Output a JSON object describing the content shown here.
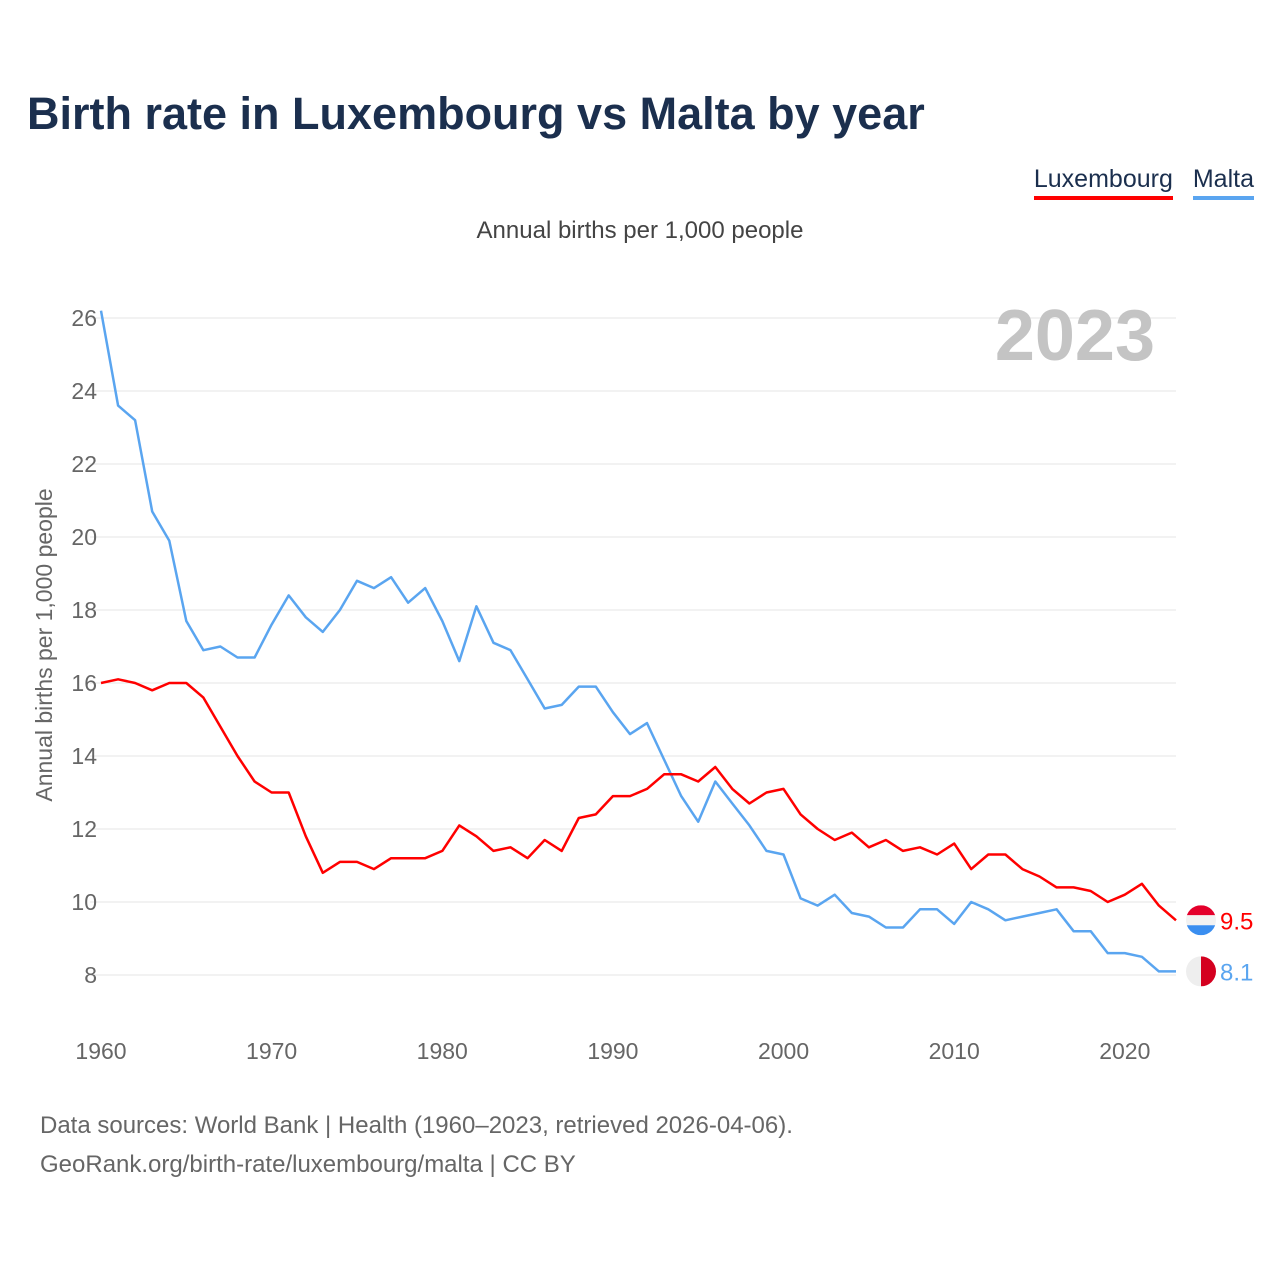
{
  "chart_data": {
    "type": "line",
    "title": "Birth rate in Luxembourg vs Malta by year",
    "subtitle": "Annual births per 1,000 people",
    "ylabel": "Annual births per 1,000 people",
    "xlabel": "",
    "year_label": "2023",
    "xlim": [
      1960,
      2023
    ],
    "ylim": [
      8,
      26
    ],
    "yticks": [
      8,
      10,
      12,
      14,
      16,
      18,
      20,
      22,
      24,
      26
    ],
    "xticks": [
      1960,
      1970,
      1980,
      1990,
      2000,
      2010,
      2020
    ],
    "grid": true,
    "legend_position": "top-right",
    "x": [
      1960,
      1961,
      1962,
      1963,
      1964,
      1965,
      1966,
      1967,
      1968,
      1969,
      1970,
      1971,
      1972,
      1973,
      1974,
      1975,
      1976,
      1977,
      1978,
      1979,
      1980,
      1981,
      1982,
      1983,
      1984,
      1985,
      1986,
      1987,
      1988,
      1989,
      1990,
      1991,
      1992,
      1993,
      1994,
      1995,
      1996,
      1997,
      1998,
      1999,
      2000,
      2001,
      2002,
      2003,
      2004,
      2005,
      2006,
      2007,
      2008,
      2009,
      2010,
      2011,
      2012,
      2013,
      2014,
      2015,
      2016,
      2017,
      2018,
      2019,
      2020,
      2021,
      2022,
      2023
    ],
    "series": [
      {
        "name": "Luxembourg",
        "color": "#ff0000",
        "end_label": "9.5",
        "values": [
          16.0,
          16.1,
          16.0,
          15.8,
          16.0,
          16.0,
          15.6,
          14.8,
          14.0,
          13.3,
          13.0,
          13.0,
          11.8,
          10.8,
          11.1,
          11.1,
          10.9,
          11.2,
          11.2,
          11.2,
          11.4,
          12.1,
          11.8,
          11.4,
          11.5,
          11.2,
          11.7,
          11.4,
          12.3,
          12.4,
          12.9,
          12.9,
          13.1,
          13.5,
          13.5,
          13.3,
          13.7,
          13.1,
          12.7,
          13.0,
          13.1,
          12.4,
          12.0,
          11.7,
          11.9,
          11.5,
          11.7,
          11.4,
          11.5,
          11.3,
          11.6,
          10.9,
          11.3,
          11.3,
          10.9,
          10.7,
          10.4,
          10.4,
          10.3,
          10.0,
          10.2,
          10.5,
          9.9,
          9.5
        ]
      },
      {
        "name": "Malta",
        "color": "#5aa5f0",
        "end_label": "8.1",
        "values": [
          26.2,
          23.6,
          23.2,
          20.7,
          19.9,
          17.7,
          16.9,
          17.0,
          16.7,
          16.7,
          17.6,
          18.4,
          17.8,
          17.4,
          18.0,
          18.8,
          18.6,
          18.9,
          18.2,
          18.6,
          17.7,
          16.6,
          18.1,
          17.1,
          16.9,
          16.1,
          15.3,
          15.4,
          15.9,
          15.9,
          15.2,
          14.6,
          14.9,
          13.9,
          12.9,
          12.2,
          13.3,
          12.7,
          12.1,
          11.4,
          11.3,
          10.1,
          9.9,
          10.2,
          9.7,
          9.6,
          9.3,
          9.3,
          9.8,
          9.8,
          9.4,
          10.0,
          9.8,
          9.5,
          9.6,
          9.7,
          9.8,
          9.2,
          9.2,
          8.6,
          8.6,
          8.5,
          8.1,
          8.1
        ]
      }
    ]
  },
  "footer": {
    "line1": "Data sources: World Bank | Health (1960–2023, retrieved 2026-04-06).",
    "line2": "GeoRank.org/birth-rate/luxembourg/malta | CC BY"
  }
}
